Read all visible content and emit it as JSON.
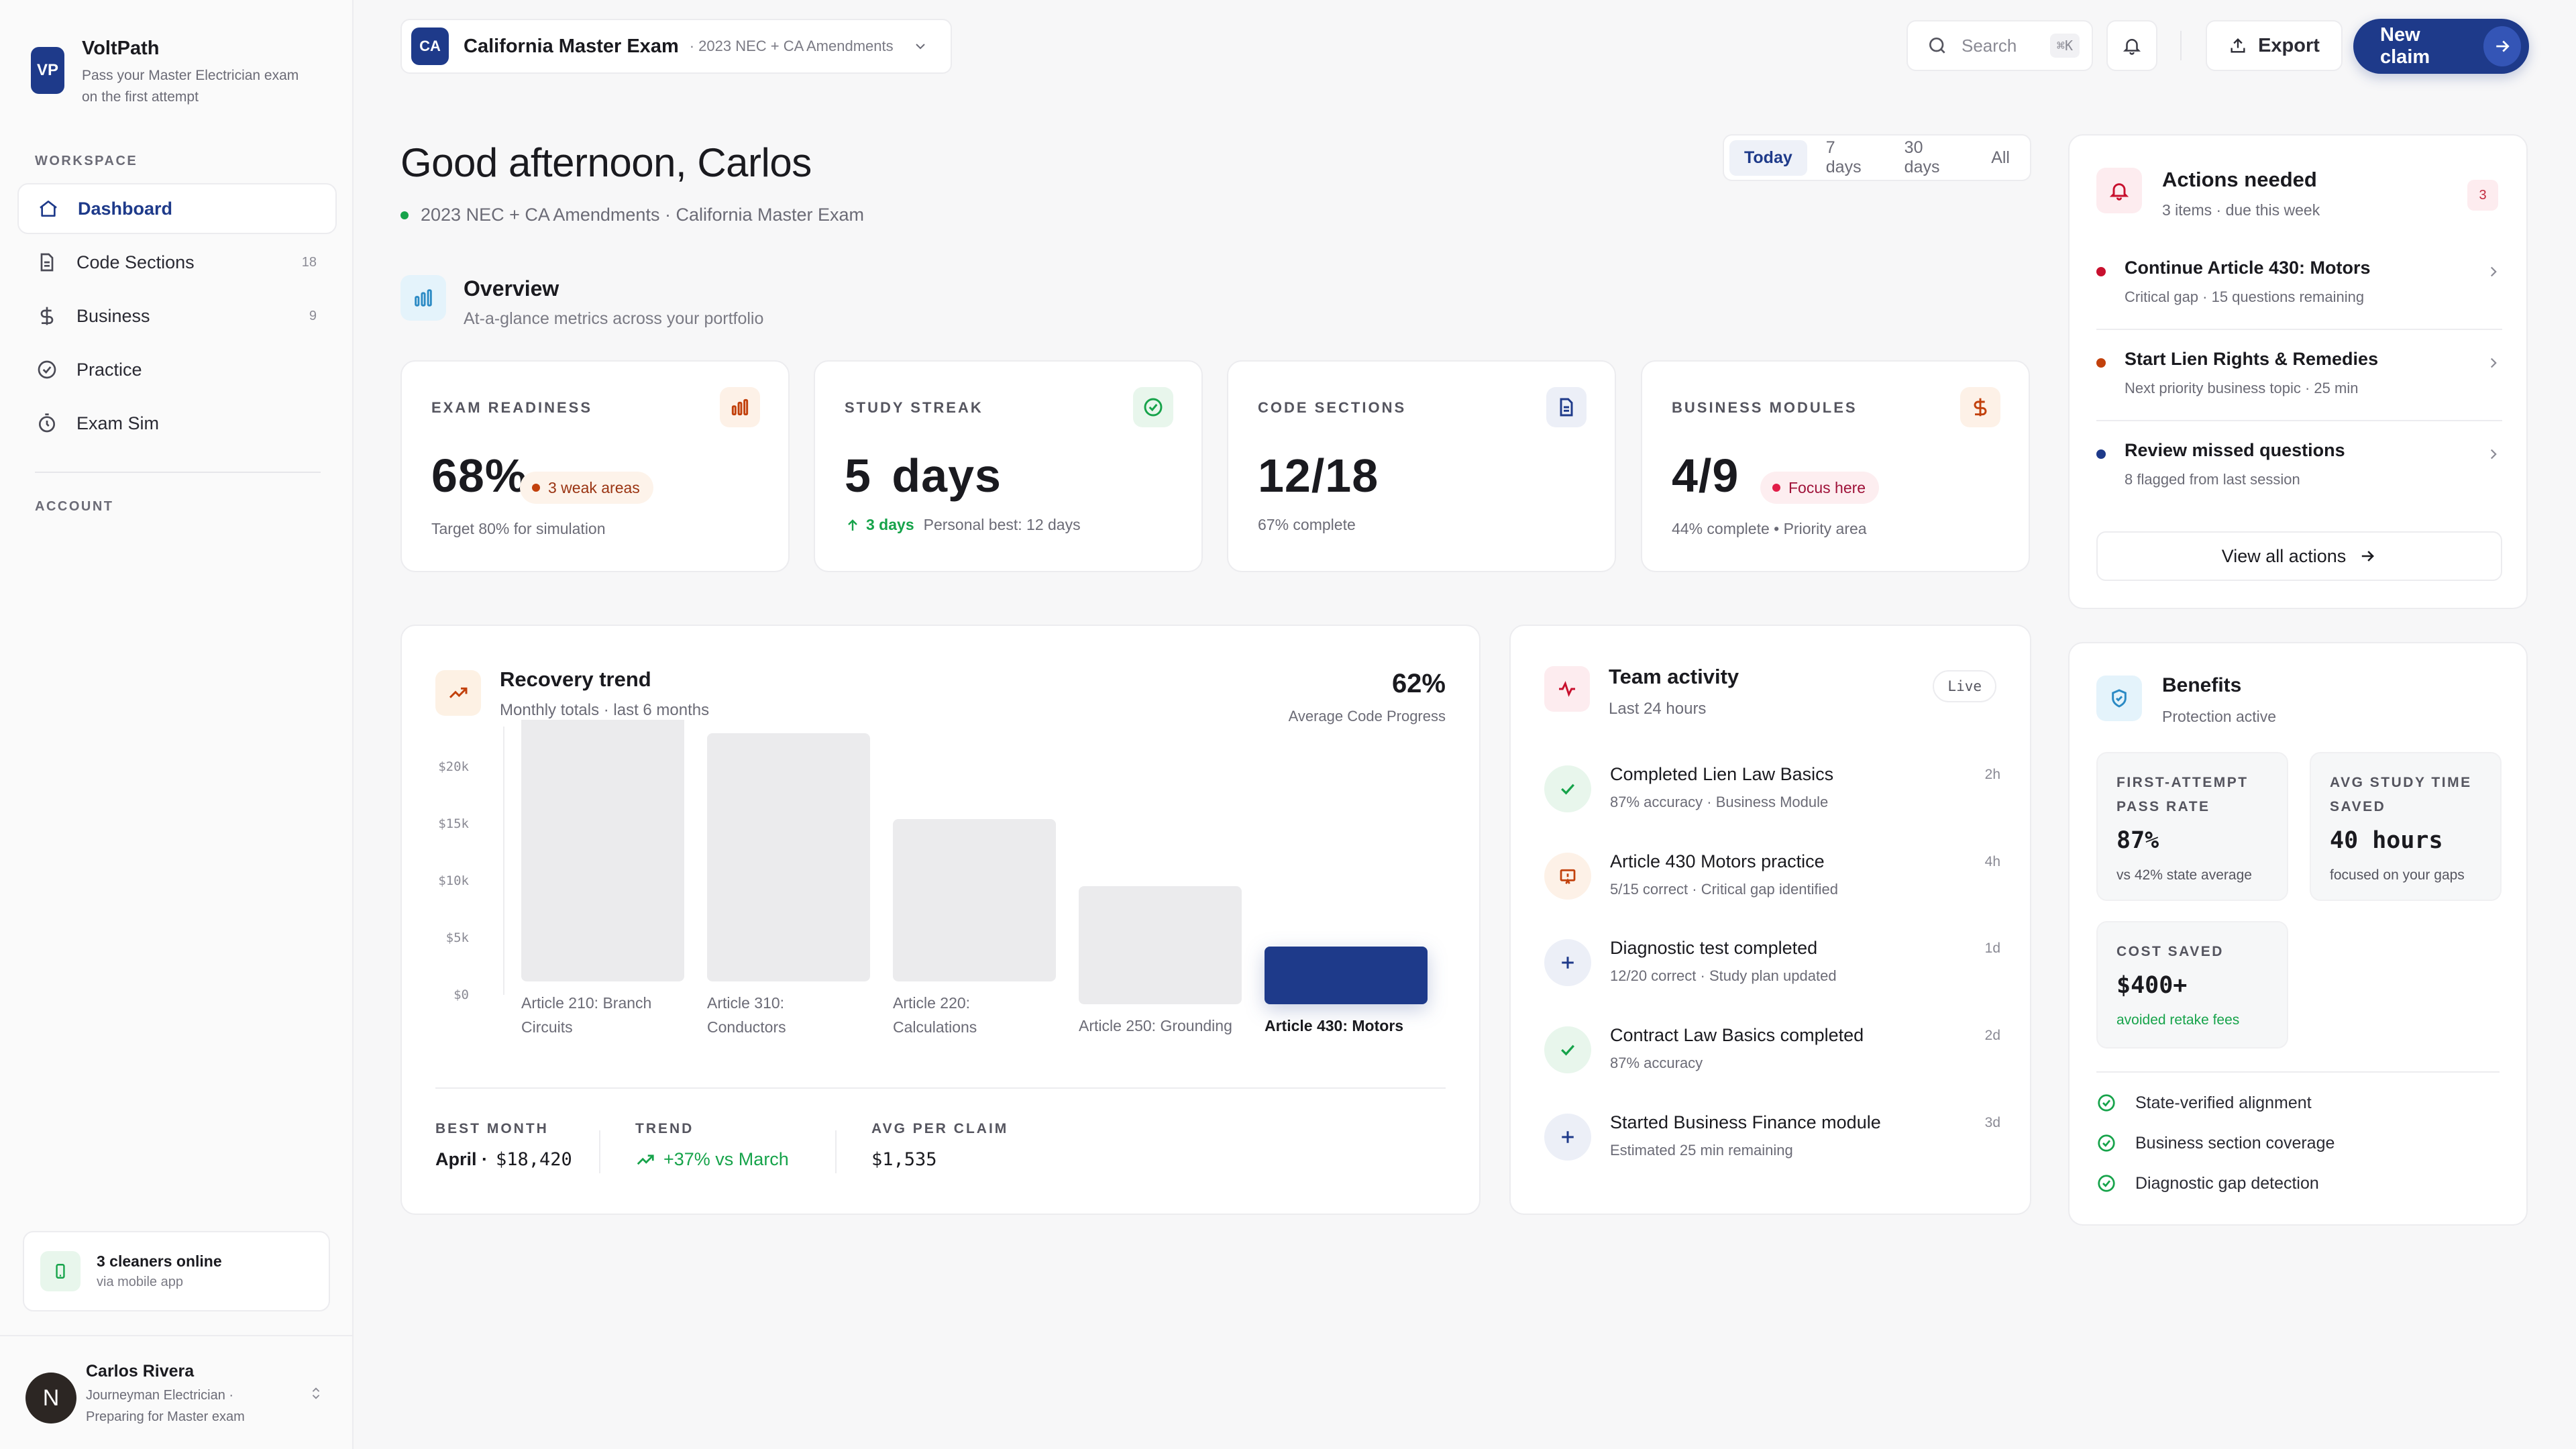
{
  "brand": {
    "logo": "VP",
    "name": "VoltPath",
    "tagline": "Pass your Master Electrician exam on the first attempt"
  },
  "sidebar": {
    "workspace_label": "WORKSPACE",
    "account_label": "ACCOUNT",
    "items": [
      {
        "label": "Dashboard",
        "icon": "home-icon",
        "count": ""
      },
      {
        "label": "Code Sections",
        "icon": "document-icon",
        "count": "18"
      },
      {
        "label": "Business",
        "icon": "dollar-icon",
        "count": "9"
      },
      {
        "label": "Practice",
        "icon": "check-circle-icon",
        "count": ""
      },
      {
        "label": "Exam Sim",
        "icon": "timer-icon",
        "count": ""
      }
    ],
    "online": {
      "title": "3 cleaners online",
      "sub": "via mobile app"
    },
    "user": {
      "initial": "N",
      "name": "Carlos Rivera",
      "role": "Journeyman Electrician · Preparing for Master exam"
    }
  },
  "topbar": {
    "exam_badge": "CA",
    "exam_name": "California Master Exam",
    "exam_sub": "· 2023 NEC + CA Amendments",
    "search_placeholder": "Search",
    "search_shortcut": "⌘K",
    "export_label": "Export",
    "new_claim_label": "New claim"
  },
  "header": {
    "greeting": "Good afternoon, Carlos",
    "subtitle": "2023 NEC + CA Amendments · California Master Exam",
    "ranges": [
      "Today",
      "7 days",
      "30 days",
      "All"
    ],
    "active_range": "Today"
  },
  "overview": {
    "title": "Overview",
    "subtitle": "At-a-glance metrics across your portfolio"
  },
  "metrics": [
    {
      "label": "EXAM READINESS",
      "value": "68%",
      "pill": "3 weak areas",
      "note": "Target 80% for simulation"
    },
    {
      "label": "STUDY STREAK",
      "value": "5 days",
      "note_accent": "3 days",
      "note": "Personal best: 12 days"
    },
    {
      "label": "CODE SECTIONS",
      "value": "12/18",
      "note": "67% complete"
    },
    {
      "label": "BUSINESS MODULES",
      "value": "4/9",
      "pill": "Focus here",
      "note": "44% complete • Priority area"
    }
  ],
  "trend": {
    "title": "Recovery trend",
    "subtitle": "Monthly totals · last 6 months",
    "big_value": "62%",
    "big_label": "Average Code Progress",
    "best_month_label": "BEST MONTH",
    "best_month_value": "April ·",
    "best_month_amount": "$18,420",
    "trend_label": "TREND",
    "trend_value": "+37% vs March",
    "avg_label": "AVG PER CLAIM",
    "avg_value": "$1,535"
  },
  "chart_data": {
    "type": "bar",
    "categories": [
      "Article 210: Branch Circuits",
      "Article 310: Conductors",
      "Article 220: Calculations",
      "Article 250: Grounding",
      "Article 430: Motors"
    ],
    "values": [
      20000,
      18500,
      12100,
      8800,
      4300
    ],
    "highlight_index": 4,
    "y_ticks": [
      "$0",
      "$5k",
      "$10k",
      "$15k",
      "$20k"
    ],
    "ylim": [
      0,
      20000
    ],
    "colors": {
      "bar": "#ebebed",
      "highlight": "#1e3a8a"
    }
  },
  "team": {
    "title": "Team activity",
    "subtitle": "Last 24 hours",
    "badge": "Live",
    "items": [
      {
        "title": "Completed Lien Law Basics",
        "sub": "87% accuracy · Business Module",
        "time": "2h",
        "icon": "check-icon"
      },
      {
        "title": "Article 430 Motors practice",
        "sub": "5/15 correct · Critical gap identified",
        "time": "4h",
        "icon": "warning-icon"
      },
      {
        "title": "Diagnostic test completed",
        "sub": "12/20 correct · Study plan updated",
        "time": "1d",
        "icon": "plus-icon"
      },
      {
        "title": "Contract Law Basics completed",
        "sub": "87% accuracy",
        "time": "2d",
        "icon": "check-icon"
      },
      {
        "title": "Started Business Finance module",
        "sub": "Estimated 25 min remaining",
        "time": "3d",
        "icon": "plus-icon"
      }
    ]
  },
  "actions": {
    "title": "Actions needed",
    "subtitle": "3 items · due this week",
    "count": "3",
    "items": [
      {
        "title": "Continue Article 430: Motors",
        "sub": "Critical gap · 15 questions remaining",
        "color": "#c8102e"
      },
      {
        "title": "Start Lien Rights & Remedies",
        "sub": "Next priority business topic · 25 min",
        "color": "#c2410c"
      },
      {
        "title": "Review missed questions",
        "sub": "8 flagged from last session",
        "color": "#1e3a8a"
      }
    ],
    "view_all": "View all actions"
  },
  "benefits": {
    "title": "Benefits",
    "subtitle": "Protection active",
    "cards": [
      {
        "label": "FIRST-ATTEMPT PASS RATE",
        "value": "87%",
        "sub": "vs 42% state average"
      },
      {
        "label": "AVG STUDY TIME SAVED",
        "value": "40 hours",
        "sub": "focused on your gaps"
      },
      {
        "label": "COST SAVED",
        "value": "$400+",
        "sub": "avoided retake fees"
      }
    ],
    "checks": [
      "State-verified alignment",
      "Business section coverage",
      "Diagnostic gap detection"
    ]
  }
}
